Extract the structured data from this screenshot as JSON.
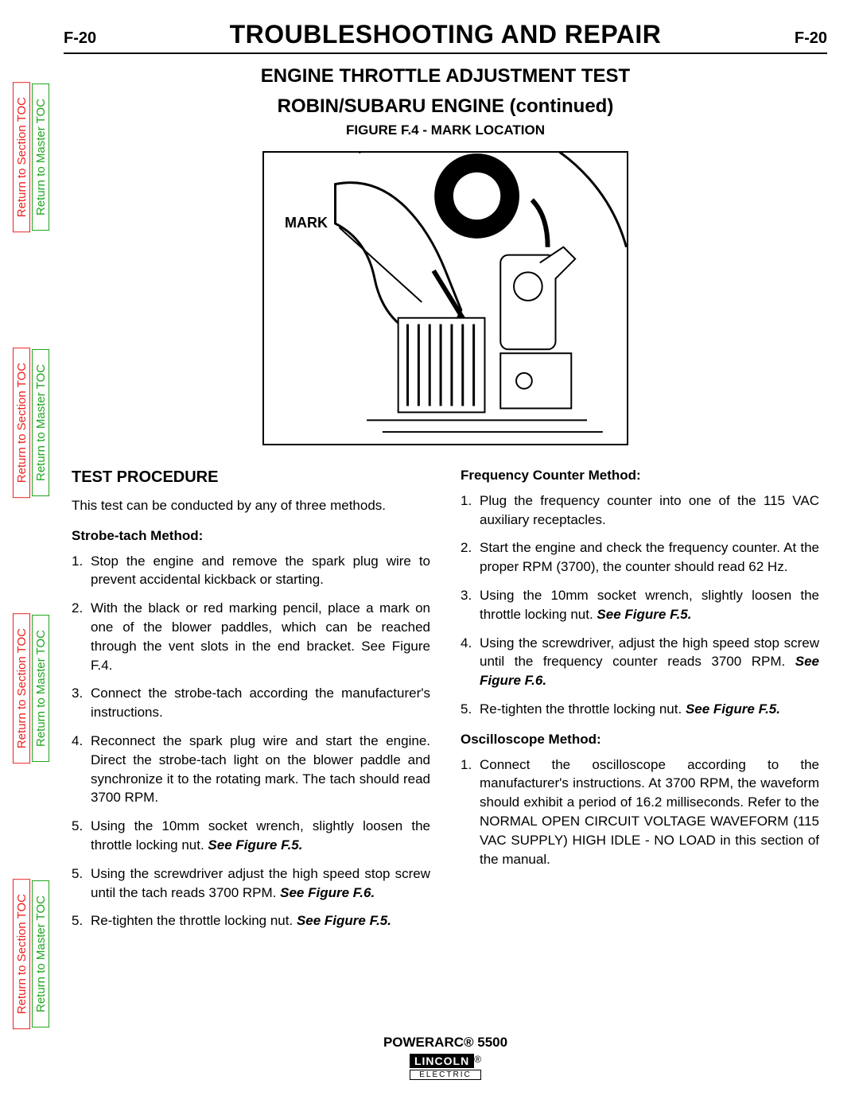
{
  "sideTabs": {
    "sectionLabel": "Return to Section TOC",
    "masterLabel": "Return to Master TOC",
    "sectionColor": "#ee2020",
    "masterColor": "#1fa61f",
    "repeats": 4
  },
  "header": {
    "pageCode": "F-20",
    "title": "TROUBLESHOOTING AND REPAIR"
  },
  "subtitles": {
    "line1": "ENGINE THROTTLE ADJUSTMENT TEST",
    "line2": "ROBIN/SUBARU ENGINE (continued)",
    "figureCaption": "FIGURE F.4 - MARK LOCATION"
  },
  "figure": {
    "markLabel": "MARK"
  },
  "leftCol": {
    "heading": "TEST PROCEDURE",
    "intro": "This test can be conducted by any of three methods.",
    "method1Title": "Strobe-tach Method:",
    "steps": [
      {
        "n": "1.",
        "t": "Stop the engine and remove the spark plug wire to prevent accidental kickback or starting."
      },
      {
        "n": "2.",
        "t": "With the black or red marking pencil, place a mark on one of the blower paddles, which can be reached through the vent slots in the end bracket.  See Figure F.4."
      },
      {
        "n": "3.",
        "t": "Connect the strobe-tach according the manufacturer's instructions."
      },
      {
        "n": "4.",
        "t": "Reconnect the spark plug wire and start the engine.  Direct the strobe-tach light on the blower paddle and synchronize it to the rotating mark. The tach should read 3700 RPM."
      },
      {
        "n": "5.",
        "t": "Using the 10mm socket wrench, slightly loosen the throttle locking nut.  ",
        "ref": "See Figure F.5."
      },
      {
        "n": "5.",
        "t": "Using the screwdriver adjust the high speed stop screw until the tach reads 3700 RPM.  ",
        "ref": "See Figure F.6."
      },
      {
        "n": "5.",
        "t": "Re-tighten the throttle locking nut. ",
        "ref": "See Figure F.5."
      }
    ]
  },
  "rightCol": {
    "method2Title": "Frequency Counter Method:",
    "steps2": [
      {
        "n": "1.",
        "t": "Plug the frequency counter into one of the 115 VAC auxiliary receptacles."
      },
      {
        "n": "2.",
        "t": "Start the engine and check the frequency counter.  At the proper RPM (3700), the counter should read 62 Hz."
      },
      {
        "n": "3.",
        "t": "Using the 10mm socket wrench, slightly loosen the throttle locking nut.  ",
        "ref": "See Figure F.5."
      },
      {
        "n": "4.",
        "t": "Using the screwdriver, adjust the high speed stop screw until the frequency counter reads 3700 RPM. ",
        "ref": "See Figure F.6."
      },
      {
        "n": "5.",
        "t": "Re-tighten the throttle locking nut. ",
        "ref": "See Figure F.5."
      }
    ],
    "method3Title": "Oscilloscope Method:",
    "steps3": [
      {
        "n": "1.",
        "t": "Connect the oscilloscope according to the manufacturer's instructions. At 3700 RPM, the waveform should exhibit a period of 16.2 milliseconds.  Refer to the NORMAL OPEN CIRCUIT VOLTAGE WAVEFORM (115 VAC SUPPLY) HIGH IDLE - NO LOAD in this section of the manual."
      }
    ]
  },
  "footer": {
    "product": "POWERARC® 5500",
    "logoTop": "LINCOLN",
    "logoReg": "®",
    "logoBottom": "ELECTRIC"
  }
}
